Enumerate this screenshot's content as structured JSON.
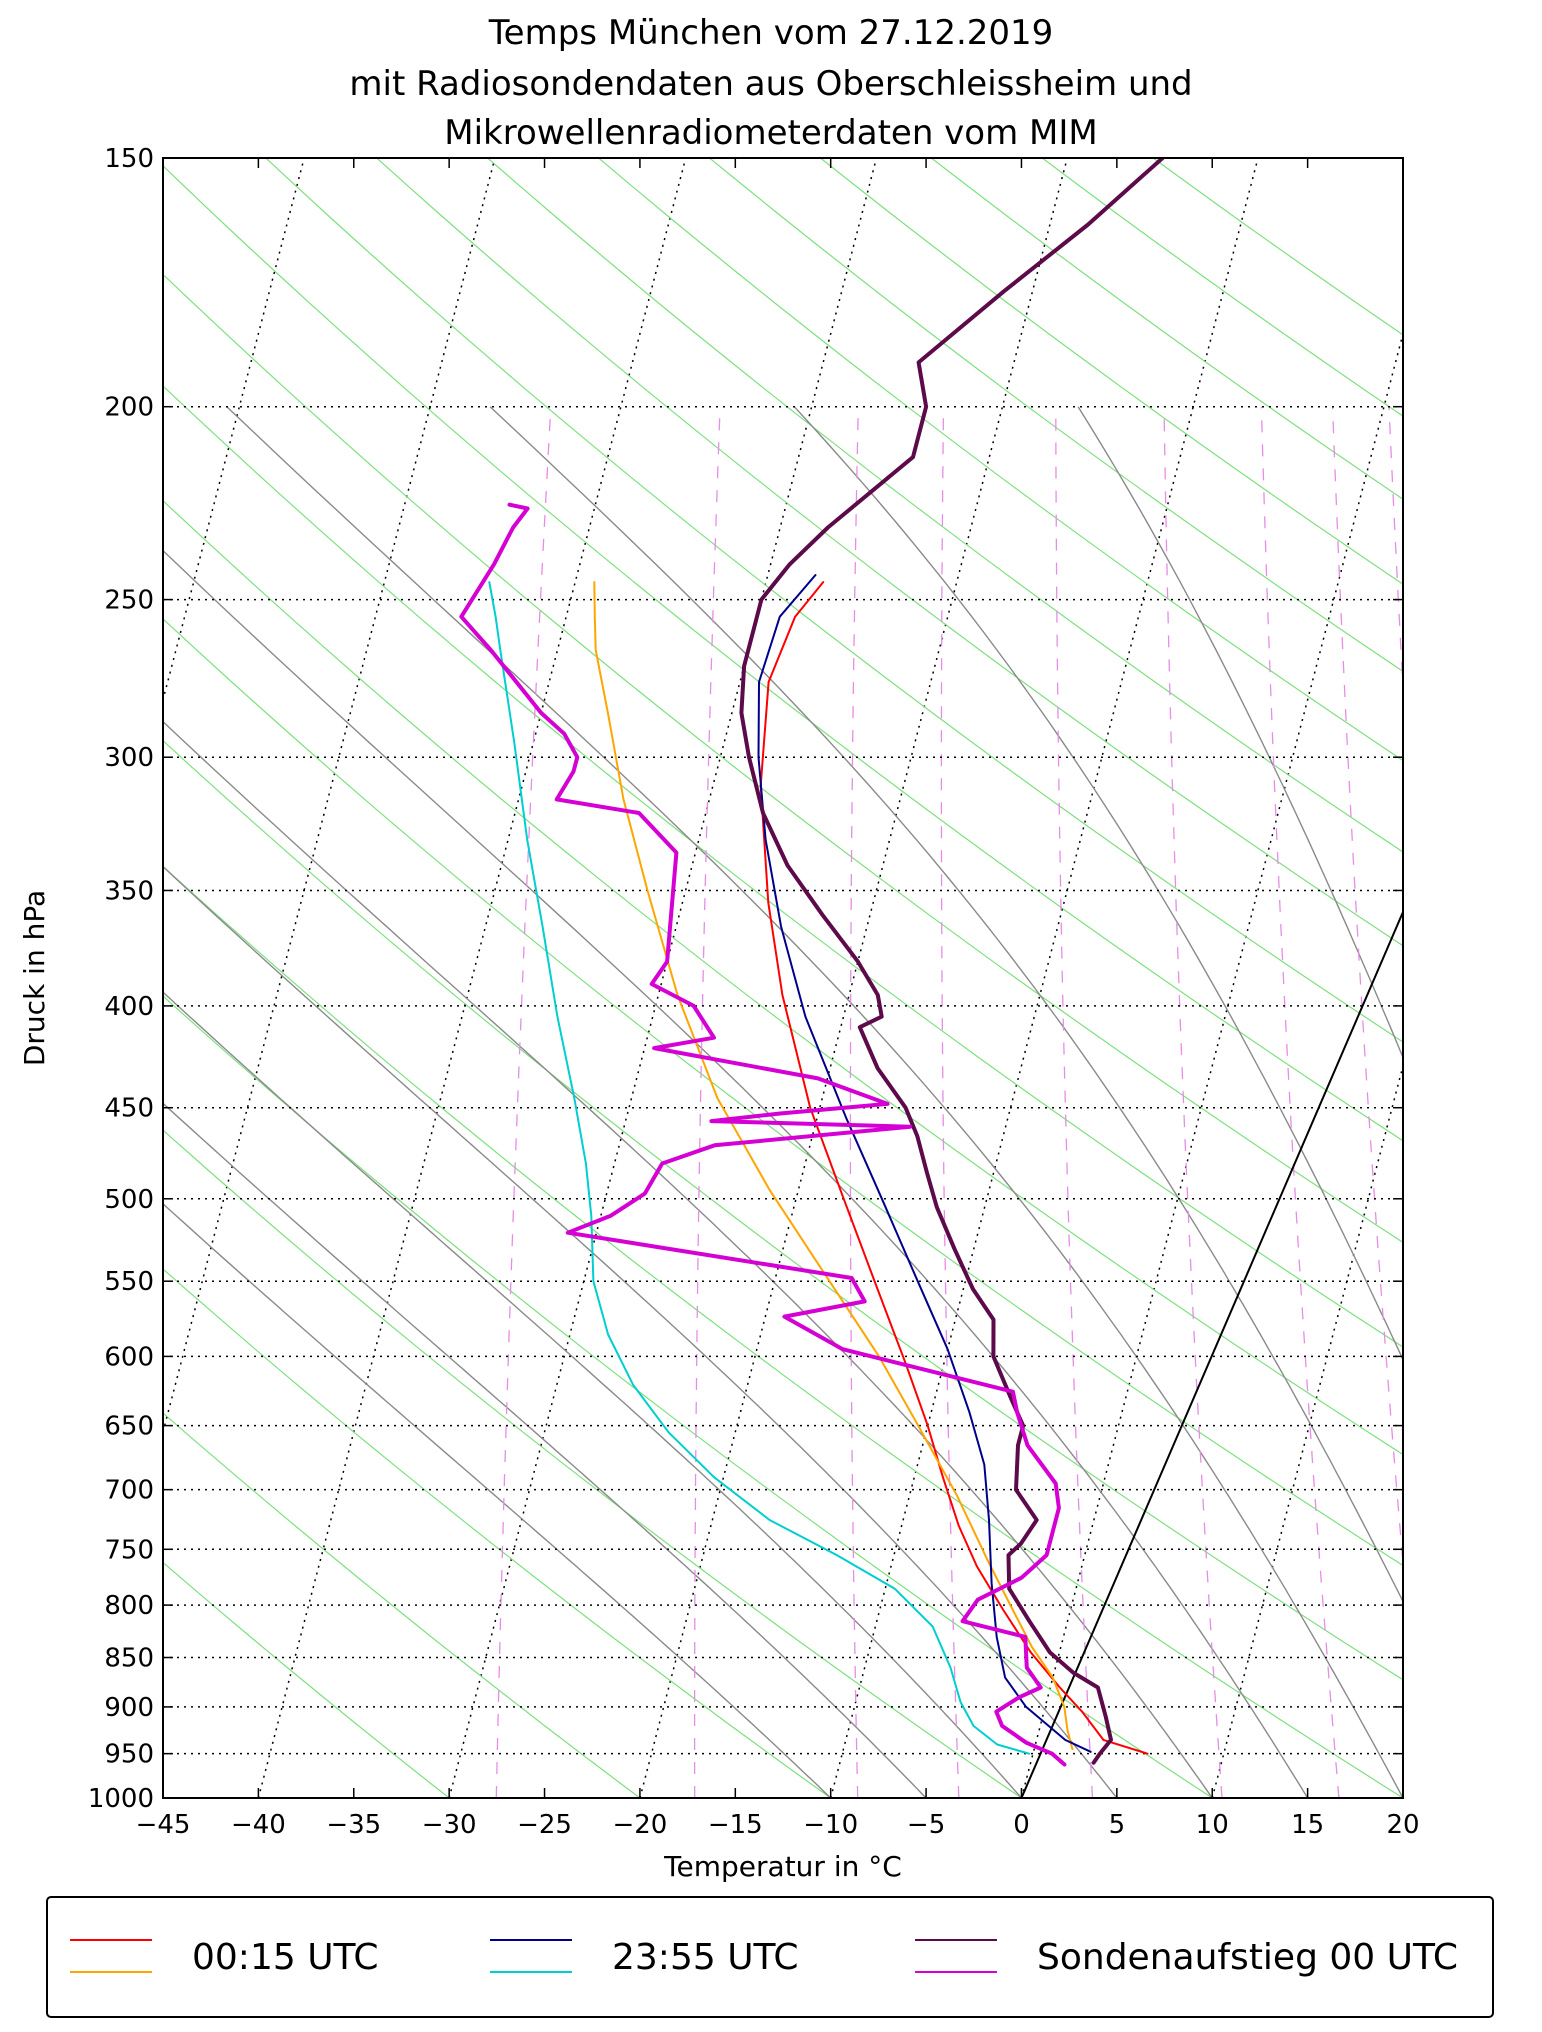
{
  "chart_data": {
    "type": "line",
    "subtype": "skew-T log-p diagram",
    "title": [
      "Temps München vom 27.12.2019",
      "mit Radiosondendaten aus Oberschleissheim und",
      "Mikrowellenradiometerdaten vom MIM"
    ],
    "xlabel": "Temperatur in °C",
    "ylabel": "Druck in hPa",
    "xlim": [
      -45,
      20
    ],
    "ylim": [
      1000,
      150
    ],
    "x_ticks": [
      -45,
      -40,
      -35,
      -30,
      -25,
      -20,
      -15,
      -10,
      -5,
      0,
      5,
      10,
      15,
      20
    ],
    "x_tick_labels": [
      "−45",
      "−40",
      "−35",
      "−30",
      "−25",
      "−20",
      "−15",
      "−10",
      "−5",
      "0",
      "5",
      "10",
      "15",
      "20"
    ],
    "y_ticks": [
      1000,
      950,
      900,
      850,
      800,
      750,
      700,
      650,
      600,
      550,
      500,
      450,
      400,
      350,
      300,
      250,
      200,
      150
    ],
    "y_tick_labels": [
      "1000",
      "950",
      "900",
      "850",
      "800",
      "750",
      "700",
      "650",
      "600",
      "550",
      "500",
      "450",
      "400",
      "350",
      "300",
      "250",
      "200",
      "150"
    ],
    "legend": {
      "position": "bottom",
      "entries": [
        {
          "label": "00:15 UTC",
          "colors": [
            "#ff0000",
            "#ffa500"
          ]
        },
        {
          "label": "23:55 UTC",
          "colors": [
            "#00008b",
            "#00ced1"
          ]
        },
        {
          "label": "Sondenaufstieg 00 UTC",
          "colors": [
            "#5c0a4a",
            "#d400d4"
          ]
        }
      ]
    },
    "series": [
      {
        "name": "00:15 UTC Temperatur",
        "color": "#ff0000",
        "width": 2,
        "points": [
          [
            6.0,
            950
          ],
          [
            3.5,
            935
          ],
          [
            2.0,
            905
          ],
          [
            0.5,
            880
          ],
          [
            -1.5,
            845
          ],
          [
            -3.5,
            805
          ],
          [
            -5.5,
            765
          ],
          [
            -7.0,
            730
          ],
          [
            -8.5,
            690
          ],
          [
            -10.0,
            650
          ],
          [
            -12.0,
            605
          ],
          [
            -14.5,
            555
          ],
          [
            -17.5,
            500
          ],
          [
            -20.5,
            450
          ],
          [
            -23.5,
            395
          ],
          [
            -25.5,
            355
          ],
          [
            -27.5,
            310
          ],
          [
            -28.5,
            275
          ],
          [
            -28.0,
            255
          ],
          [
            -27.0,
            245
          ]
        ]
      },
      {
        "name": "00:15 UTC Taupunkt",
        "color": "#ffa500",
        "width": 2,
        "points": [
          [
            2.0,
            945
          ],
          [
            1.5,
            925
          ],
          [
            1.0,
            900
          ],
          [
            0.0,
            870
          ],
          [
            -1.5,
            840
          ],
          [
            -3.0,
            805
          ],
          [
            -5.0,
            760
          ],
          [
            -7.5,
            705
          ],
          [
            -10.5,
            650
          ],
          [
            -13.5,
            600
          ],
          [
            -17.5,
            545
          ],
          [
            -21.5,
            495
          ],
          [
            -25.5,
            445
          ],
          [
            -29.0,
            395
          ],
          [
            -32.0,
            350
          ],
          [
            -34.5,
            315
          ],
          [
            -36.5,
            285
          ],
          [
            -38.0,
            265
          ],
          [
            -38.5,
            255
          ],
          [
            -39.0,
            245
          ]
        ]
      },
      {
        "name": "23:55 UTC Temperatur",
        "color": "#00008b",
        "width": 2,
        "points": [
          [
            3.0,
            948
          ],
          [
            1.5,
            935
          ],
          [
            -1.0,
            900
          ],
          [
            -2.5,
            870
          ],
          [
            -3.5,
            830
          ],
          [
            -4.5,
            780
          ],
          [
            -5.5,
            725
          ],
          [
            -6.5,
            680
          ],
          [
            -8.0,
            640
          ],
          [
            -10.0,
            595
          ],
          [
            -12.5,
            550
          ],
          [
            -15.5,
            500
          ],
          [
            -18.5,
            455
          ],
          [
            -22.0,
            405
          ],
          [
            -24.5,
            365
          ],
          [
            -26.5,
            330
          ],
          [
            -28.0,
            300
          ],
          [
            -29.0,
            275
          ],
          [
            -28.8,
            255
          ],
          [
            -27.5,
            243
          ]
        ]
      },
      {
        "name": "23:55 UTC Taupunkt",
        "color": "#00ced1",
        "width": 2,
        "points": [
          [
            -0.2,
            950
          ],
          [
            -2.0,
            940
          ],
          [
            -3.5,
            920
          ],
          [
            -4.5,
            895
          ],
          [
            -5.5,
            860
          ],
          [
            -7.0,
            820
          ],
          [
            -9.5,
            785
          ],
          [
            -13.0,
            755
          ],
          [
            -17.0,
            725
          ],
          [
            -20.5,
            690
          ],
          [
            -23.5,
            655
          ],
          [
            -26.0,
            620
          ],
          [
            -28.0,
            585
          ],
          [
            -29.5,
            550
          ],
          [
            -30.5,
            510
          ],
          [
            -31.5,
            480
          ],
          [
            -33.0,
            445
          ],
          [
            -35.0,
            405
          ],
          [
            -37.0,
            365
          ],
          [
            -39.0,
            330
          ],
          [
            -41.0,
            295
          ],
          [
            -43.0,
            265
          ],
          [
            -43.7,
            255
          ],
          [
            -44.5,
            245
          ]
        ]
      },
      {
        "name": "Sondenaufstieg 00 UTC Temperatur",
        "color": "#5c0a4a",
        "width": 4,
        "points": [
          [
            3.3,
            960
          ],
          [
            3.5,
            950
          ],
          [
            3.9,
            935
          ],
          [
            3.3,
            910
          ],
          [
            2.5,
            880
          ],
          [
            1.0,
            865
          ],
          [
            -0.5,
            845
          ],
          [
            -2.0,
            815
          ],
          [
            -3.5,
            785
          ],
          [
            -4.0,
            755
          ],
          [
            -3.5,
            745
          ],
          [
            -3.0,
            725
          ],
          [
            -4.5,
            700
          ],
          [
            -5.0,
            665
          ],
          [
            -5.0,
            650
          ],
          [
            -6.0,
            630
          ],
          [
            -7.5,
            600
          ],
          [
            -8.0,
            575
          ],
          [
            -9.5,
            555
          ],
          [
            -11.0,
            530
          ],
          [
            -12.5,
            505
          ],
          [
            -13.5,
            485
          ],
          [
            -14.5,
            465
          ],
          [
            -15.5,
            450
          ],
          [
            -17.5,
            430
          ],
          [
            -19.0,
            410
          ],
          [
            -18.0,
            405
          ],
          [
            -18.5,
            395
          ],
          [
            -20.0,
            380
          ],
          [
            -22.5,
            360
          ],
          [
            -25.0,
            340
          ],
          [
            -27.0,
            320
          ],
          [
            -28.5,
            300
          ],
          [
            -29.5,
            285
          ],
          [
            -30.0,
            270
          ],
          [
            -30.0,
            260
          ],
          [
            -30.0,
            250
          ],
          [
            -29.0,
            240
          ],
          [
            -27.5,
            230
          ],
          [
            -24.0,
            212
          ],
          [
            -24.0,
            200
          ],
          [
            -25.0,
            190
          ],
          [
            -21.5,
            175
          ],
          [
            -18.0,
            162
          ],
          [
            -15.0,
            150
          ]
        ]
      },
      {
        "name": "Sondenaufstieg 00 UTC Taupunkt",
        "color": "#d400d4",
        "width": 4,
        "points": [
          [
            1.8,
            962
          ],
          [
            1.0,
            950
          ],
          [
            -0.5,
            938
          ],
          [
            -2.0,
            920
          ],
          [
            -2.5,
            905
          ],
          [
            -1.5,
            890
          ],
          [
            -0.5,
            880
          ],
          [
            -1.5,
            860
          ],
          [
            -2.0,
            830
          ],
          [
            -5.5,
            815
          ],
          [
            -5.0,
            795
          ],
          [
            -3.0,
            775
          ],
          [
            -2.0,
            755
          ],
          [
            -2.0,
            715
          ],
          [
            -2.5,
            695
          ],
          [
            -4.5,
            665
          ],
          [
            -5.5,
            640
          ],
          [
            -6.0,
            625
          ],
          [
            -15.5,
            595
          ],
          [
            -19.0,
            573
          ],
          [
            -15.0,
            563
          ],
          [
            -16.0,
            548
          ],
          [
            -31.5,
            520
          ],
          [
            -29.5,
            510
          ],
          [
            -28.0,
            497
          ],
          [
            -27.5,
            480
          ],
          [
            -25.0,
            470
          ],
          [
            -15.0,
            460
          ],
          [
            -25.5,
            457
          ],
          [
            -22.0,
            453
          ],
          [
            -16.5,
            448
          ],
          [
            -20.5,
            435
          ],
          [
            -29.5,
            420
          ],
          [
            -26.5,
            415
          ],
          [
            -28.0,
            400
          ],
          [
            -30.5,
            390
          ],
          [
            -30.0,
            380
          ],
          [
            -31.0,
            335
          ],
          [
            -33.5,
            320
          ],
          [
            -38.0,
            315
          ],
          [
            -37.5,
            305
          ],
          [
            -37.5,
            300
          ],
          [
            -38.5,
            292
          ],
          [
            -40.0,
            285
          ],
          [
            -43.5,
            265
          ],
          [
            -45.5,
            255
          ],
          [
            -44.5,
            240
          ],
          [
            -44.0,
            230
          ],
          [
            -43.5,
            225
          ],
          [
            -44.5,
            224
          ]
        ]
      }
    ]
  }
}
